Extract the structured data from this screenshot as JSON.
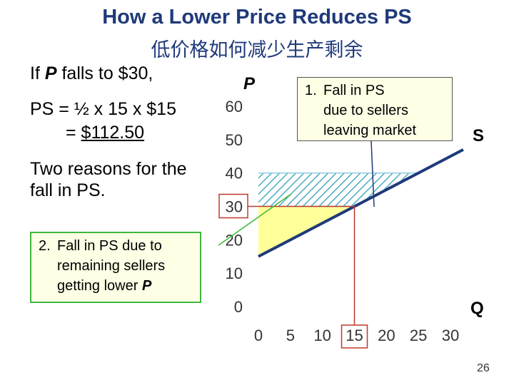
{
  "slide": {
    "title": "How a Lower Price Reduces PS",
    "title_zh": "低价格如何减少生产剩余",
    "if_text_prefix": "If ",
    "if_text_var": "P",
    "if_text_suffix": " falls to $30,",
    "ps_line1": "PS = ½ x 15 x $15",
    "ps_line2_prefix": "= ",
    "ps_line2_value": "$112.50",
    "reasons_text": "Two reasons for the fall in PS.",
    "callout_1": {
      "number": "1.",
      "lines": [
        "Fall in PS",
        "due to sellers",
        "leaving market"
      ]
    },
    "callout_2": {
      "number": "2.",
      "line1": "Fall in PS due to",
      "line2": "remaining sellers",
      "line3_prefix": "getting lower ",
      "line3_var": "P"
    },
    "page_number": "26"
  },
  "chart_data": {
    "type": "line",
    "y_axis_label": "P",
    "x_axis_label": "Q",
    "supply_label": "S",
    "x_ticks": [
      "0",
      "5",
      "10",
      "15",
      "20",
      "25",
      "30"
    ],
    "y_ticks": [
      "0",
      "10",
      "20",
      "30",
      "40",
      "50",
      "60"
    ],
    "xlim": [
      0,
      30
    ],
    "ylim": [
      0,
      60
    ],
    "grid": false,
    "series": [
      {
        "name": "S",
        "x": [
          0,
          30
        ],
        "y": [
          15,
          45
        ],
        "color": "#1f3a7a"
      }
    ],
    "highlighted_x_tick": "15",
    "highlighted_y_tick": "30",
    "price_lines": [
      {
        "price": 40,
        "from_q": 0,
        "to_q": 25
      },
      {
        "price": 30,
        "from_q": 0,
        "to_q": 15
      }
    ],
    "regions": [
      {
        "kind": "new_ps",
        "fill": "#ffff99",
        "vertices": [
          [
            0,
            15
          ],
          [
            15,
            30
          ],
          [
            0,
            30
          ]
        ]
      },
      {
        "kind": "lost_ps",
        "fill": "hatch",
        "vertices": [
          [
            0,
            30
          ],
          [
            15,
            30
          ],
          [
            25,
            40
          ],
          [
            0,
            40
          ]
        ]
      }
    ],
    "colors": {
      "supply": "#1f3a7a",
      "highlight_box": "#c0392b",
      "hatch": "#2a9cb8",
      "new_ps": "#ffff99",
      "callout_2_border": "#3cb83c"
    }
  }
}
